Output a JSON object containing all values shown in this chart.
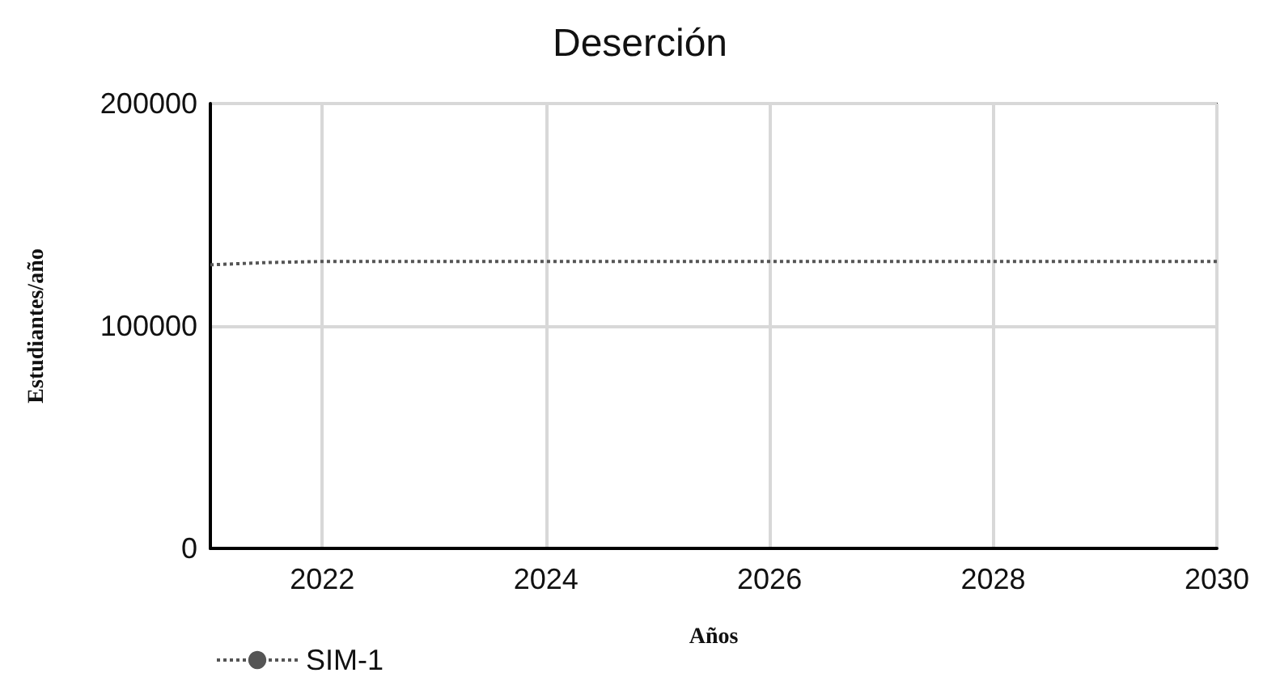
{
  "chart_data": {
    "type": "line",
    "title": "Deserción",
    "xlabel": "Años",
    "ylabel": "Estudiantes/año",
    "x": [
      2021,
      2021.5,
      2022,
      2023,
      2024,
      2025,
      2026,
      2027,
      2028,
      2029,
      2030
    ],
    "series": [
      {
        "name": "SIM-1",
        "color": "#555555",
        "values": [
          127500,
          128500,
          129000,
          129000,
          129000,
          129000,
          129000,
          129000,
          129000,
          129000,
          129000
        ]
      }
    ],
    "xlim": [
      2021,
      2030
    ],
    "xticks": [
      2022,
      2024,
      2026,
      2028,
      2030
    ],
    "ylim": [
      0,
      200000
    ],
    "yticks": [
      0,
      100000,
      200000
    ],
    "grid": true,
    "legend": "bottom left",
    "marker": "none",
    "line_style": "dotted"
  }
}
